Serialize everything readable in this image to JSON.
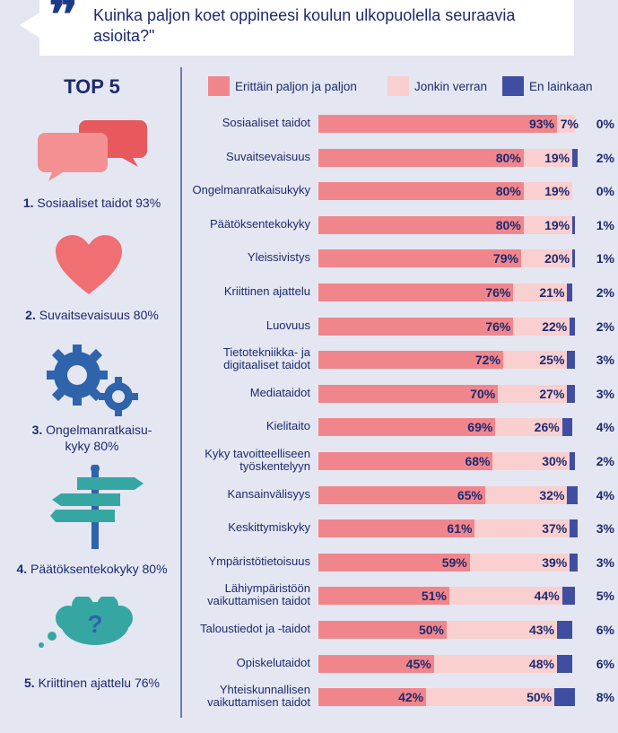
{
  "question": {
    "quote": "❞",
    "text": "Kuinka paljon koet oppineesi koulun ulkopuolella seuraavia asioita?\""
  },
  "top5": {
    "title": "TOP 5",
    "items": [
      {
        "rank": "1.",
        "label": "Sosiaaliset taidot 93%",
        "icon": "speech-bubbles-icon"
      },
      {
        "rank": "2.",
        "label": "Suvaitsevaisuus 80%",
        "icon": "heart-icon"
      },
      {
        "rank": "3.",
        "label_line1": "Ongelmanratkaisu-",
        "label_line2": "kyky 80%",
        "icon": "gears-icon"
      },
      {
        "rank": "4.",
        "label": "Päätöksentekokyky 80%",
        "icon": "signpost-icon"
      },
      {
        "rank": "5.",
        "label": "Kriittinen ajattelu 76%",
        "icon": "question-bubble-icon"
      }
    ]
  },
  "colors": {
    "erittain": "#f0868c",
    "jonkin": "#f9cfcf",
    "ei": "#3f4ea1",
    "accent_red": "#ef6f73",
    "accent_blue": "#2f63ab",
    "accent_teal": "#36a6a3"
  },
  "chart_data": {
    "type": "bar",
    "orientation": "horizontal",
    "stacked": true,
    "title": "Kuinka paljon koet oppineesi koulun ulkopuolella seuraavia asioita?\"",
    "legend_position": "top",
    "categories": [
      [
        "Sosiaaliset taidot"
      ],
      [
        "Suvaitsevaisuus"
      ],
      [
        "Ongelmanratkaisukyky"
      ],
      [
        "Päätöksentekokyky"
      ],
      [
        "Yleissivistys"
      ],
      [
        "Kriittinen ajattelu"
      ],
      [
        "Luovuus"
      ],
      [
        "Tietotekniikka- ja",
        "digitaaliset taidot"
      ],
      [
        "Mediataidot"
      ],
      [
        "Kielitaito"
      ],
      [
        "Kyky tavoitteelliseen",
        "työskentelyyn"
      ],
      [
        "Kansainvälisyys"
      ],
      [
        "Keskittymiskyky"
      ],
      [
        "Ympäristötietoisuus"
      ],
      [
        "Lähiympäristöön",
        "vaikuttamisen taidot"
      ],
      [
        "Taloustiedot ja -taidot"
      ],
      [
        "Opiskelutaidot"
      ],
      [
        "Yhteiskunnallisen",
        "vaikuttamisen taidot"
      ]
    ],
    "series": [
      {
        "name": "Erittäin paljon ja paljon",
        "values": [
          93,
          80,
          80,
          80,
          79,
          76,
          76,
          72,
          70,
          69,
          68,
          65,
          61,
          59,
          51,
          50,
          45,
          42
        ]
      },
      {
        "name": "Jonkin verran",
        "values": [
          7,
          19,
          19,
          19,
          20,
          21,
          22,
          25,
          27,
          26,
          30,
          32,
          37,
          39,
          44,
          43,
          48,
          50
        ]
      },
      {
        "name": "En lainkaan",
        "values": [
          0,
          2,
          0,
          1,
          1,
          2,
          2,
          3,
          3,
          4,
          2,
          4,
          3,
          3,
          5,
          6,
          6,
          8
        ]
      }
    ],
    "value_suffix": "%",
    "xlim": [
      0,
      100
    ]
  }
}
